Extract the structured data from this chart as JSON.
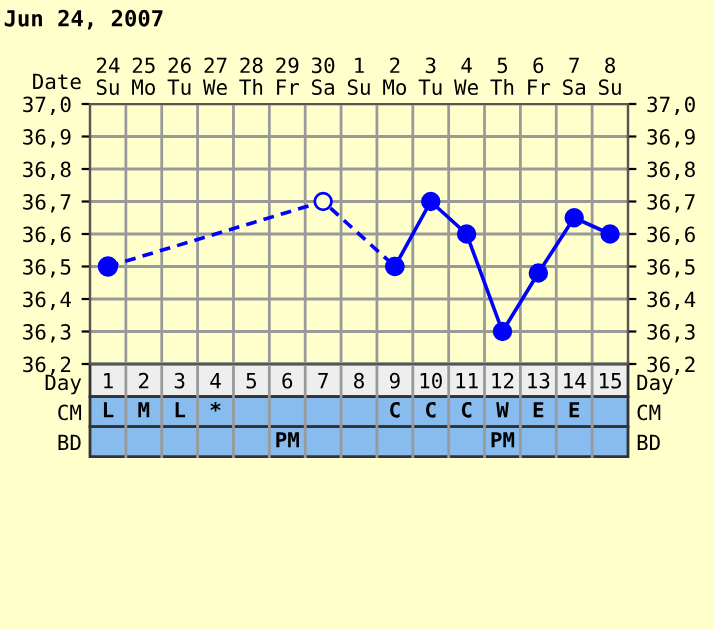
{
  "chart_data": {
    "type": "line",
    "title": "Jun 24, 2007",
    "xlabel": "Day",
    "categories": [
      "1",
      "2",
      "3",
      "4",
      "5",
      "6",
      "7",
      "8",
      "9",
      "10",
      "11",
      "12",
      "13",
      "14",
      "15"
    ],
    "series": [
      {
        "x": [
          "1",
          "7",
          "9"
        ],
        "values": [
          36.5,
          36.7,
          36.5
        ],
        "color": "#0000ff",
        "line_style": "dashed",
        "marker": "circle"
      },
      {
        "x": [
          "9",
          "10",
          "11",
          "12",
          "13",
          "14",
          "15"
        ],
        "values": [
          36.5,
          36.7,
          36.6,
          36.3,
          36.48,
          36.65,
          36.6
        ],
        "color": "#0000ff",
        "line_style": "solid",
        "marker": "circle"
      },
      {
        "type": "scatter",
        "x": [
          "1"
        ],
        "values": [
          36.5
        ],
        "color": "#0000ff",
        "marker": "circle"
      }
    ],
    "ylim": [
      36.2,
      37.0
    ],
    "yticks": [
      {
        "value": 36.2,
        "label": "36,2"
      },
      {
        "value": 36.3,
        "label": "36,3"
      },
      {
        "value": 36.4,
        "label": "36,4"
      },
      {
        "value": 36.5,
        "label": "36,5"
      },
      {
        "value": 36.6,
        "label": "36,6"
      },
      {
        "value": 36.7,
        "label": "36,7"
      },
      {
        "value": 36.8,
        "label": "36,8"
      },
      {
        "value": 36.9,
        "label": "36,9"
      },
      {
        "value": 37.0,
        "label": "37,0"
      }
    ],
    "y2lim": [
      36.2,
      37.0
    ],
    "y2ticks": [
      {
        "value": 36.2,
        "label": "36,2"
      },
      {
        "value": 36.3,
        "label": "36,3"
      },
      {
        "value": 36.4,
        "label": "36,4"
      },
      {
        "value": 36.5,
        "label": "36,5"
      },
      {
        "value": 36.6,
        "label": "36,6"
      },
      {
        "value": 36.7,
        "label": "36,7"
      },
      {
        "value": 36.8,
        "label": "36,8"
      },
      {
        "value": 36.9,
        "label": "36,9"
      },
      {
        "value": 37.0,
        "label": "37,0"
      }
    ],
    "grid": true,
    "annotations": [
      "Date",
      "24\nSu",
      "25\nMo",
      "26\nTu",
      "27\nWe",
      "28\nTh",
      "29\nFr",
      "30\nSa",
      "1\nSu",
      "2\nMo",
      "3\nTu",
      "4\nWe",
      "5\nTh",
      "6\nFr",
      "7\nSa",
      "8\nSu",
      "CM",
      "L",
      "M",
      "L",
      "*",
      null,
      null,
      null,
      null,
      "C",
      "C",
      "C",
      "W",
      "E",
      "E",
      null,
      "BD",
      null,
      null,
      null,
      null,
      null,
      "PM",
      null,
      null,
      null,
      null,
      null,
      "PM",
      null,
      null,
      null
    ]
  }
}
